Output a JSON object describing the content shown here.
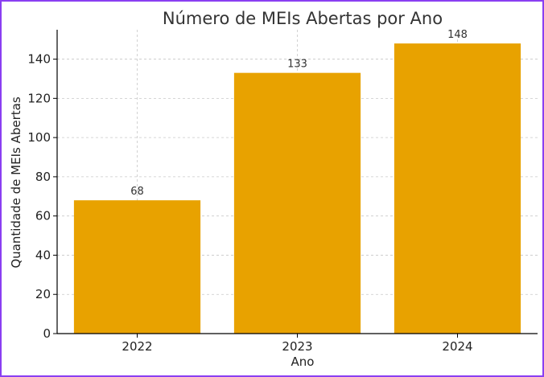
{
  "chart_data": {
    "type": "bar",
    "title": "Número de MEIs Abertas por Ano",
    "xlabel": "Ano",
    "ylabel": "Quantidade de MEIs Abertas",
    "categories": [
      "2022",
      "2023",
      "2024"
    ],
    "values": [
      68,
      133,
      148
    ],
    "data_labels": [
      "68",
      "133",
      "148"
    ],
    "ylim": [
      0,
      155
    ],
    "yticks": [
      0,
      20,
      40,
      60,
      80,
      100,
      120,
      140
    ],
    "grid": true,
    "legend": "none",
    "colors": {
      "bar": "#e8a200",
      "grid": "#c8c8c8",
      "axis": "#000000",
      "frame": "#8a3ff2"
    }
  }
}
